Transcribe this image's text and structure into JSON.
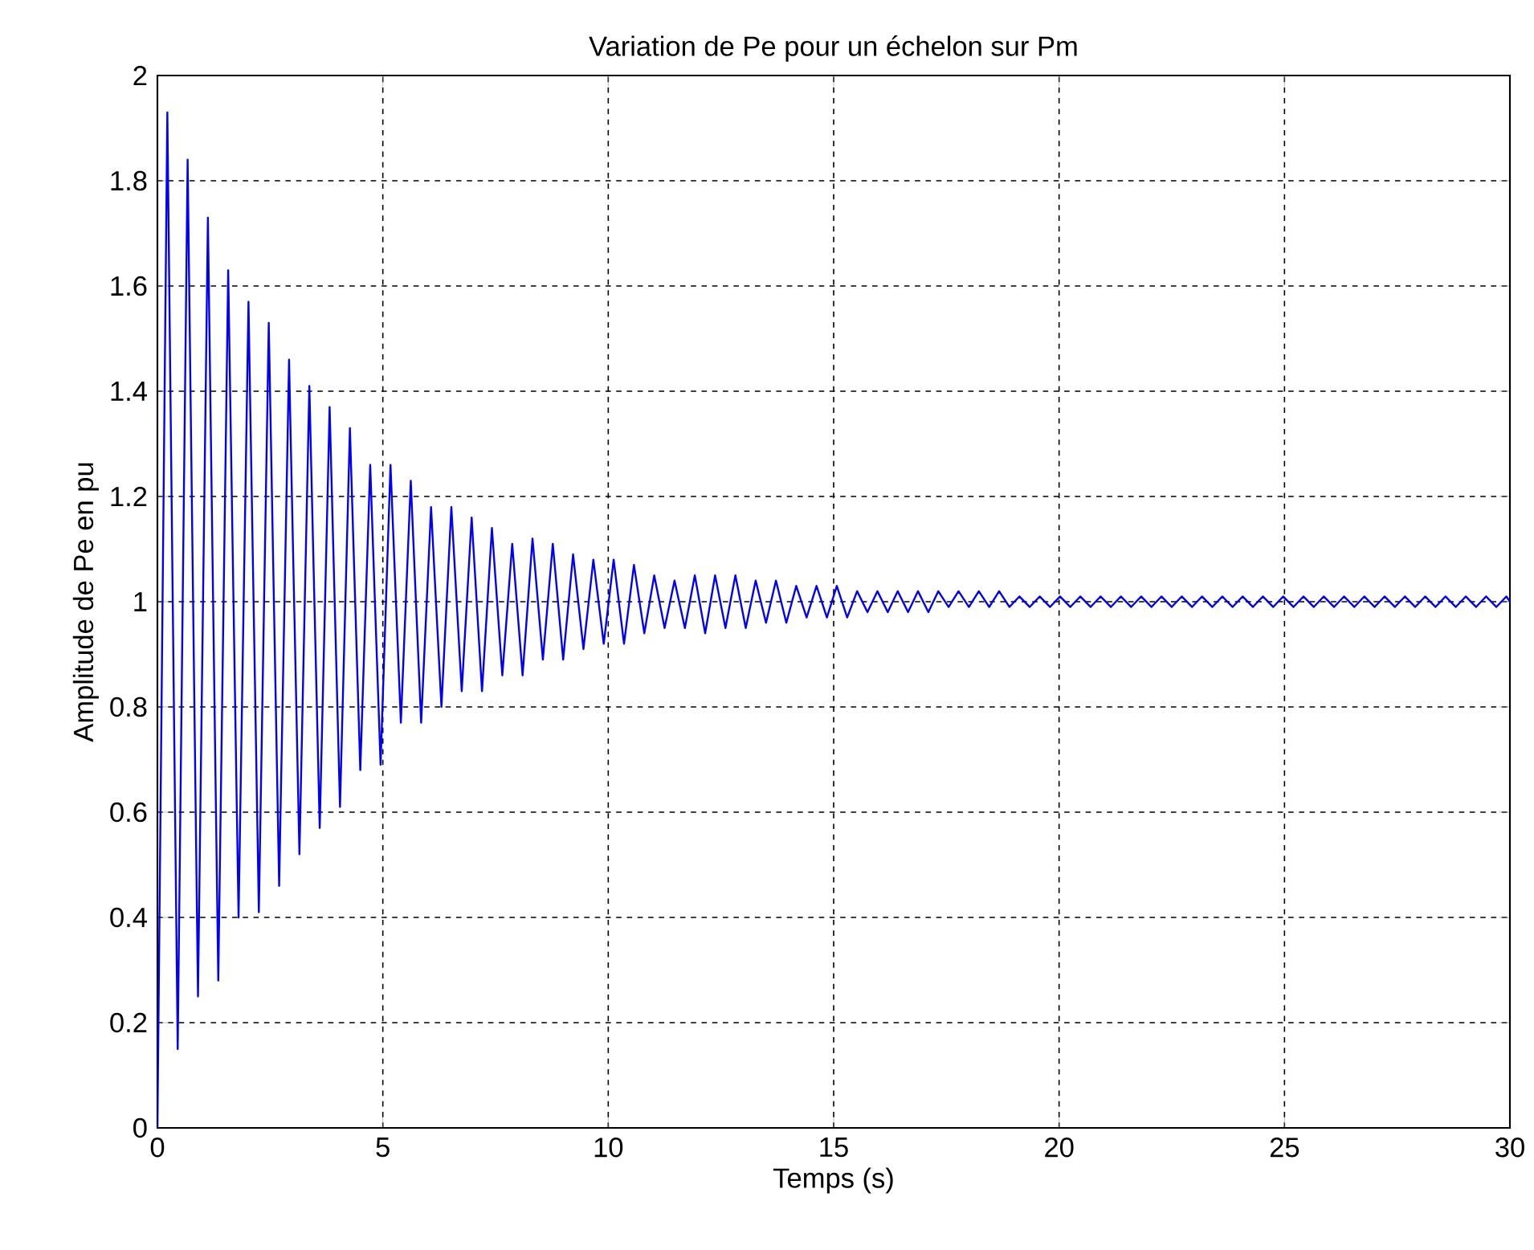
{
  "chart_data": {
    "type": "line",
    "title": "Variation de Pe pour un échelon sur Pm",
    "xlabel": "Temps (s)",
    "ylabel": "Amplitude de Pe en pu",
    "xlim": [
      0,
      30
    ],
    "ylim": [
      0,
      2
    ],
    "xticks": [
      0,
      5,
      10,
      15,
      20,
      25,
      30
    ],
    "yticks": [
      0,
      0.2,
      0.4,
      0.6,
      0.8,
      1,
      1.2,
      1.4,
      1.6,
      1.8,
      2
    ],
    "grid": true,
    "color": "#0000ff",
    "x": [
      0,
      0.22,
      0.45,
      0.67,
      0.9,
      1.12,
      1.35,
      1.57,
      1.8,
      2.02,
      2.25,
      2.47,
      2.7,
      2.92,
      3.15,
      3.37,
      3.6,
      3.82,
      4.05,
      4.27,
      4.5,
      4.72,
      4.95,
      5.17,
      5.4,
      5.62,
      5.85,
      6.07,
      6.3,
      6.52,
      6.75,
      6.97,
      7.2,
      7.42,
      7.65,
      7.87,
      8.1,
      8.32,
      8.55,
      8.77,
      9.0,
      9.22,
      9.45,
      9.67,
      9.9,
      10.12,
      10.35,
      10.57,
      10.8,
      11.02,
      11.25,
      11.47,
      11.7,
      11.92,
      12.15,
      12.37,
      12.6,
      12.82,
      13.05,
      13.27,
      13.5,
      13.72,
      13.95,
      14.17,
      14.4,
      14.62,
      14.85,
      15.07,
      15.3,
      15.52,
      15.75,
      15.97,
      16.2,
      16.42,
      16.65,
      16.87,
      17.1,
      17.32,
      17.55,
      17.77,
      18.0,
      18.22,
      18.45,
      18.67,
      18.9,
      19.12,
      19.35,
      19.57,
      19.8,
      20.02,
      20.25,
      20.47,
      20.7,
      20.92,
      21.15,
      21.37,
      21.6,
      21.82,
      22.05,
      22.27,
      22.5,
      22.72,
      22.95,
      23.17,
      23.4,
      23.62,
      23.85,
      24.07,
      24.3,
      24.52,
      24.75,
      24.97,
      25.2,
      25.42,
      25.65,
      25.87,
      26.1,
      26.32,
      26.55,
      26.77,
      27.0,
      27.22,
      27.45,
      27.67,
      27.9,
      28.12,
      28.35,
      28.57,
      28.8,
      29.02,
      29.25,
      29.47,
      29.7,
      29.92,
      30
    ],
    "values": [
      0,
      1.93,
      0.15,
      1.84,
      0.25,
      1.73,
      0.28,
      1.63,
      0.4,
      1.57,
      0.41,
      1.53,
      0.46,
      1.46,
      0.52,
      1.41,
      0.57,
      1.37,
      0.61,
      1.33,
      0.68,
      1.26,
      0.69,
      1.26,
      0.77,
      1.23,
      0.77,
      1.18,
      0.8,
      1.18,
      0.83,
      1.16,
      0.83,
      1.14,
      0.86,
      1.11,
      0.86,
      1.12,
      0.89,
      1.11,
      0.89,
      1.09,
      0.91,
      1.08,
      0.92,
      1.08,
      0.92,
      1.07,
      0.94,
      1.05,
      0.95,
      1.04,
      0.95,
      1.05,
      0.94,
      1.05,
      0.95,
      1.05,
      0.95,
      1.04,
      0.96,
      1.04,
      0.96,
      1.03,
      0.97,
      1.03,
      0.97,
      1.03,
      0.97,
      1.02,
      0.98,
      1.02,
      0.98,
      1.02,
      0.98,
      1.02,
      0.98,
      1.02,
      0.99,
      1.02,
      0.99,
      1.02,
      0.99,
      1.02,
      0.99,
      1.01,
      0.99,
      1.01,
      0.99,
      1.01,
      0.99,
      1.01,
      0.99,
      1.01,
      0.99,
      1.01,
      0.99,
      1.01,
      0.99,
      1.01,
      0.99,
      1.01,
      0.99,
      1.01,
      0.99,
      1.01,
      0.99,
      1.01,
      0.99,
      1.01,
      0.99,
      1.01,
      0.99,
      1.01,
      0.99,
      1.01,
      0.99,
      1.01,
      0.99,
      1.01,
      0.99,
      1.01,
      0.99,
      1.01,
      0.99,
      1.01,
      0.99,
      1.01,
      0.99,
      1.01,
      0.99,
      1.01,
      0.99,
      1.01,
      1.0
    ]
  }
}
